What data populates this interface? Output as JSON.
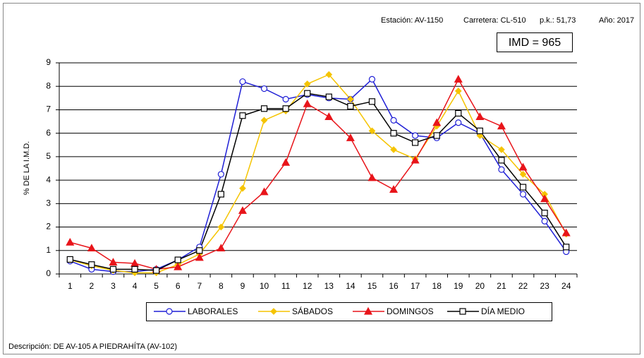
{
  "chart_data": {
    "type": "line",
    "header": [
      "Estación: AV-1150",
      "Carretera: CL-510",
      "p.k.: 51,73",
      "Año: 2017"
    ],
    "imd": "IMD = 965",
    "ylabel": "% DE LA I.M.D.",
    "footer": "Descripción: DE  AV-105 A PIEDRAHÍTA (AV-102)",
    "categories": [
      "1",
      "2",
      "3",
      "4",
      "5",
      "6",
      "7",
      "8",
      "9",
      "10",
      "11",
      "12",
      "13",
      "14",
      "15",
      "16",
      "17",
      "18",
      "19",
      "20",
      "21",
      "22",
      "23",
      "24"
    ],
    "ylim": [
      0,
      9
    ],
    "yticks": [
      0,
      1,
      2,
      3,
      4,
      5,
      6,
      7,
      8,
      9
    ],
    "grid": true,
    "series": [
      {
        "name": "LABORALES",
        "color": "#1f1fd6",
        "marker": "circle",
        "marker_filled": false,
        "values": [
          0.55,
          0.2,
          0.1,
          0.1,
          0.2,
          0.6,
          1.15,
          4.25,
          8.2,
          7.9,
          7.45,
          7.65,
          7.5,
          7.45,
          8.3,
          6.55,
          5.9,
          5.8,
          6.45,
          6.0,
          4.45,
          3.4,
          2.25,
          0.95
        ]
      },
      {
        "name": "SÁBADOS",
        "color": "#f5c400",
        "marker": "diamond",
        "marker_filled": true,
        "values": [
          0.6,
          0.35,
          0.15,
          0.05,
          0.05,
          0.4,
          0.85,
          2.0,
          3.65,
          6.55,
          6.95,
          8.1,
          8.5,
          7.45,
          6.1,
          5.3,
          4.9,
          6.3,
          7.8,
          5.9,
          5.3,
          4.25,
          3.4,
          1.7
        ]
      },
      {
        "name": "DOMINGOS",
        "color": "#e8141a",
        "marker": "triangle",
        "marker_filled": true,
        "values": [
          1.35,
          1.1,
          0.5,
          0.45,
          0.2,
          0.3,
          0.7,
          1.1,
          2.7,
          3.5,
          4.75,
          7.25,
          6.7,
          5.8,
          4.1,
          3.6,
          4.85,
          6.45,
          8.3,
          6.7,
          6.3,
          4.55,
          3.2,
          1.75
        ]
      },
      {
        "name": "DÍA MEDIO",
        "color": "#000000",
        "marker": "square",
        "marker_filled": false,
        "values": [
          0.62,
          0.4,
          0.2,
          0.2,
          0.15,
          0.6,
          1.0,
          3.4,
          6.75,
          7.05,
          7.05,
          7.7,
          7.55,
          7.15,
          7.35,
          6.0,
          5.6,
          5.9,
          6.85,
          6.1,
          4.85,
          3.7,
          2.6,
          1.15
        ]
      }
    ]
  }
}
